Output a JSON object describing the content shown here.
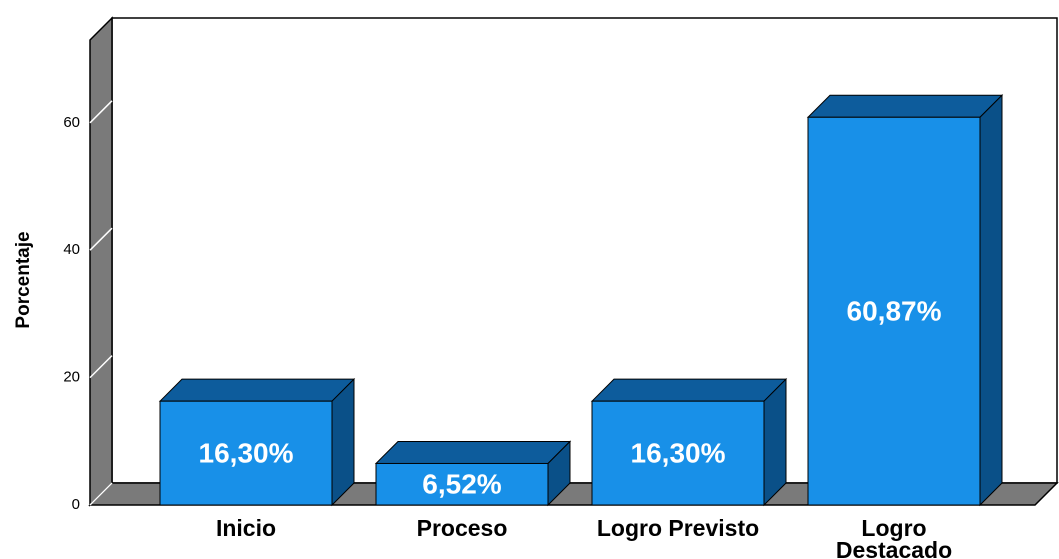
{
  "chart_data": {
    "type": "bar3d",
    "y_label": "Porcentaje",
    "categories": [
      "Inicio",
      "Proceso",
      "Logro Previsto",
      "Logro Destacado"
    ],
    "values": [
      16.3,
      6.52,
      16.3,
      60.87
    ],
    "value_labels": [
      "16,30%",
      "6,52%",
      "16,30%",
      "60,87%"
    ],
    "color": "#1890e8",
    "ylim": [
      0,
      73
    ],
    "yticks": [
      0,
      20,
      40,
      60
    ]
  }
}
